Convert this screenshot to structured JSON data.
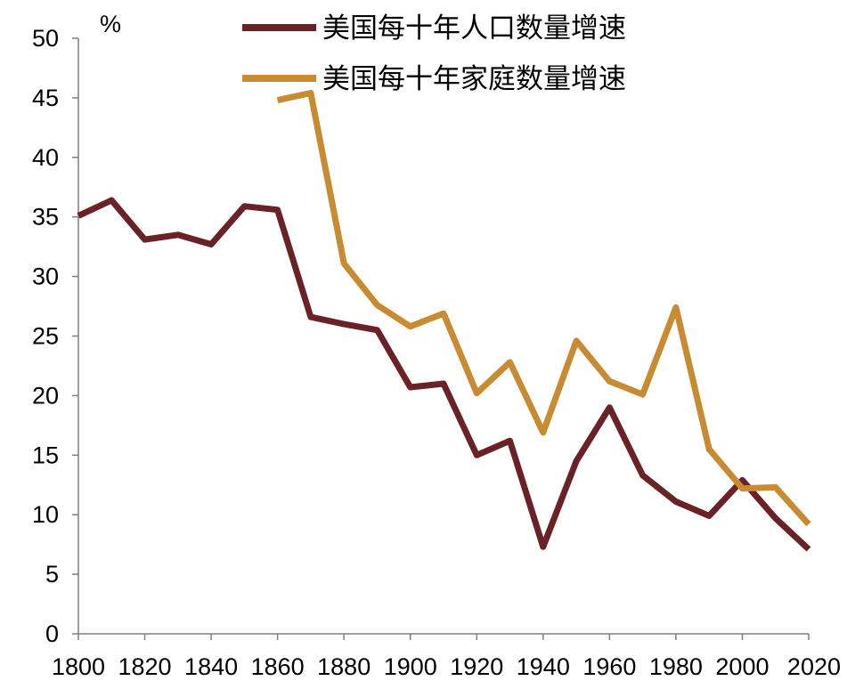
{
  "chart_data": {
    "type": "line",
    "unit": "%",
    "x": [
      1800,
      1810,
      1820,
      1830,
      1840,
      1850,
      1860,
      1870,
      1880,
      1890,
      1900,
      1910,
      1920,
      1930,
      1940,
      1950,
      1960,
      1970,
      1980,
      1990,
      2000,
      2010,
      2020
    ],
    "x_ticks": [
      "1800",
      "1820",
      "1840",
      "1860",
      "1880",
      "1900",
      "1920",
      "1940",
      "1960",
      "1980",
      "2000",
      "2020"
    ],
    "y_ticks": [
      "0",
      "5",
      "10",
      "15",
      "20",
      "25",
      "30",
      "35",
      "40",
      "45",
      "50"
    ],
    "xlim": [
      1800,
      2020
    ],
    "ylim": [
      0,
      50
    ],
    "grid": false,
    "legend_position": "top",
    "series": [
      {
        "name": "美国每十年人口数量增速",
        "color": "#6b2226",
        "values": [
          35.1,
          36.4,
          33.1,
          33.5,
          32.7,
          35.9,
          35.6,
          26.6,
          26.0,
          25.5,
          20.7,
          21.0,
          15.0,
          16.2,
          7.3,
          14.5,
          19.0,
          13.3,
          11.1,
          9.9,
          12.9,
          9.7,
          7.1
        ]
      },
      {
        "name": "美国每十年家庭数量增速",
        "color": "#c98b32",
        "values": [
          null,
          null,
          null,
          null,
          null,
          null,
          44.8,
          45.4,
          31.1,
          27.6,
          25.8,
          26.9,
          20.2,
          22.8,
          16.9,
          24.6,
          21.2,
          20.1,
          27.4,
          15.5,
          12.2,
          12.3,
          9.2
        ]
      }
    ]
  }
}
